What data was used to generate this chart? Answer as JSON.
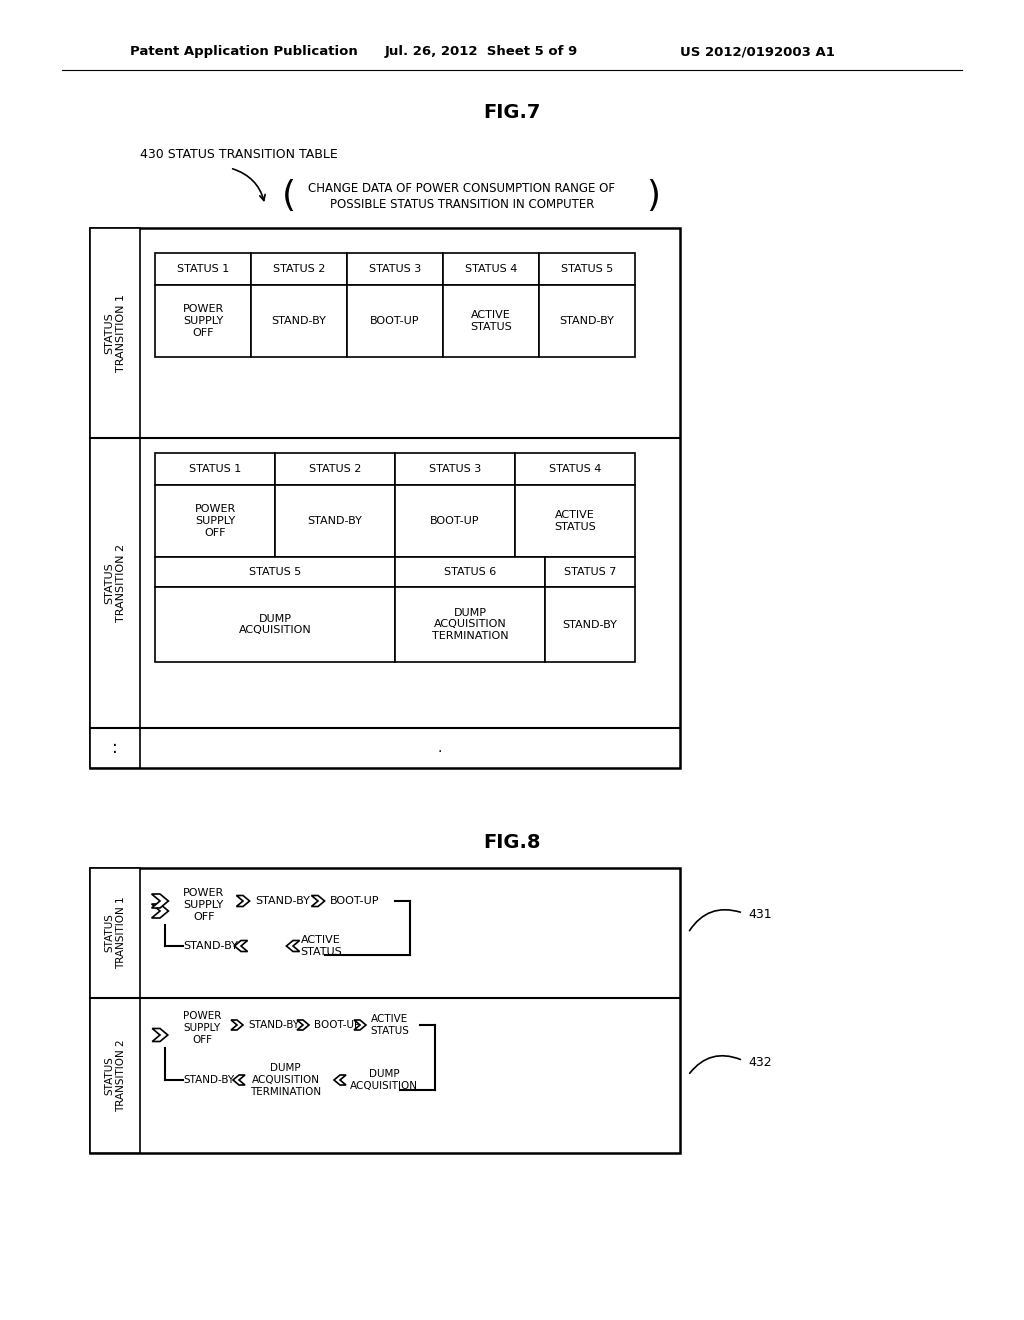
{
  "bg_color": "#ffffff",
  "header_left": "Patent Application Publication",
  "header_center": "Jul. 26, 2012  Sheet 5 of 9",
  "header_right": "US 2012/0192003 A1",
  "fig7_title": "FIG.7",
  "fig8_title": "FIG.8",
  "label_430": "430 STATUS TRANSITION TABLE",
  "t1_statuses": [
    "STATUS 1",
    "STATUS 2",
    "STATUS 3",
    "STATUS 4",
    "STATUS 5"
  ],
  "t1_values": [
    "POWER\nSUPPLY\nOFF",
    "STAND-BY",
    "BOOT-UP",
    "ACTIVE\nSTATUS",
    "STAND-BY"
  ],
  "t2_statuses_row1": [
    "STATUS 1",
    "STATUS 2",
    "STATUS 3",
    "STATUS 4"
  ],
  "t2_values_row1": [
    "POWER\nSUPPLY\nOFF",
    "STAND-BY",
    "BOOT-UP",
    "ACTIVE\nSTATUS"
  ],
  "t2_statuses_row2": [
    "STATUS 5",
    "STATUS 6",
    "STATUS 7"
  ],
  "t2_values_row2": [
    "DUMP\nACQUISITION",
    "DUMP\nACQUISITION\nTERMINATION",
    "STAND-BY"
  ],
  "label_431": "431",
  "label_432": "432"
}
